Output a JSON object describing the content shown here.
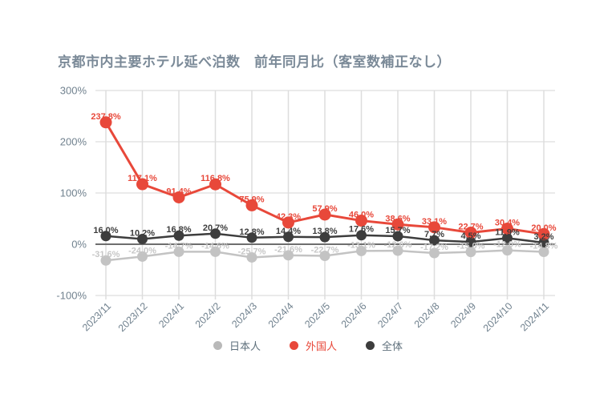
{
  "chart_data": {
    "type": "line",
    "title": "京都市内主要ホテル延べ泊数　前年同月比（客室数補正なし）",
    "x": [
      "2023/11",
      "2023/12",
      "2024/1",
      "2024/2",
      "2024/3",
      "2024/4",
      "2024/5",
      "2024/6",
      "2024/7",
      "2024/8",
      "2024/9",
      "2024/10",
      "2024/11"
    ],
    "series": [
      {
        "id": "japanese",
        "name": "日本人",
        "color": "#c3c3c3",
        "label_color": "#c7c7c7",
        "line_width": 2.5,
        "marker_radius": 6.5,
        "values": [
          -31.6,
          -24.0,
          -14.7,
          -14.6,
          -25.7,
          -21.6,
          -22.7,
          -13.1,
          -12.6,
          -17.2,
          -15.0,
          -12.0,
          -14.8
        ]
      },
      {
        "id": "total",
        "name": "全体",
        "color": "#3d3d3d",
        "label_color": "#3d3d3d",
        "line_width": 2.5,
        "marker_radius": 6.5,
        "values": [
          16.0,
          10.2,
          16.8,
          20.7,
          12.8,
          14.4,
          13.8,
          17.6,
          15.7,
          7.7,
          4.5,
          11.9,
          3.2
        ]
      },
      {
        "id": "foreign",
        "name": "外国人",
        "color": "#e8483a",
        "label_color": "#e8483a",
        "line_width": 3,
        "marker_radius": 7.5,
        "values": [
          237.8,
          117.1,
          91.4,
          116.8,
          75.9,
          42.3,
          57.9,
          46.0,
          38.6,
          33.1,
          22.7,
          30.4,
          20.0
        ]
      }
    ],
    "ylim": [
      -100,
      300
    ],
    "yticks": [
      {
        "value": 300,
        "label": "300%"
      },
      {
        "value": 200,
        "label": "200%"
      },
      {
        "value": 100,
        "label": "100%"
      },
      {
        "value": 0,
        "label": "0%"
      },
      {
        "value": -100,
        "label": "-100%"
      }
    ],
    "grid": true,
    "legend_position": "bottom",
    "value_suffix": "%"
  },
  "legend": {
    "items": [
      {
        "id": "japanese",
        "label": "日本人",
        "dot_color": "#b9b9b9",
        "text_color": "#5f707c"
      },
      {
        "id": "foreign",
        "label": "外国人",
        "dot_color": "#e8483a",
        "text_color": "#e8483a"
      },
      {
        "id": "total",
        "label": "全体",
        "dot_color": "#3d3d3d",
        "text_color": "#5f707c"
      }
    ]
  },
  "colors": {
    "title": "#7b8a98",
    "axis_label": "#71828f",
    "gridline": "#dddddd",
    "zero_line": "#6e6e6e",
    "background": "#ffffff"
  }
}
